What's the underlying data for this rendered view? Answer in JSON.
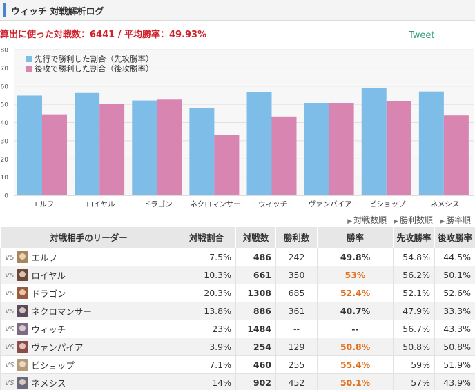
{
  "header": {
    "title": "ウィッチ 対戦解析ログ"
  },
  "summary": {
    "text": "算出に使った対戦数：6441 / 平均勝率：49.93%"
  },
  "tweet": {
    "label": "Tweet"
  },
  "colors": {
    "first": "#7fbde9",
    "second": "#d885b2",
    "accent": "#4a86c8",
    "orange": "#e36c17",
    "red": "#d0202a"
  },
  "chart_data": {
    "type": "bar",
    "categories": [
      "エルフ",
      "ロイヤル",
      "ドラゴン",
      "ネクロマンサー",
      "ウィッチ",
      "ヴァンパイア",
      "ビショップ",
      "ネメシス"
    ],
    "series": [
      {
        "name": "先行で勝利した割合（先攻勝率）",
        "values": [
          54.8,
          56.2,
          52.1,
          47.9,
          56.7,
          50.8,
          59.0,
          57.0
        ]
      },
      {
        "name": "後攻で勝利した割合（後攻勝率）",
        "values": [
          44.5,
          50.1,
          52.6,
          33.3,
          43.3,
          50.8,
          51.9,
          43.9
        ]
      }
    ],
    "ylim": [
      0,
      80
    ],
    "yticks": [
      0,
      10,
      20,
      30,
      40,
      50,
      60,
      70,
      80
    ],
    "grid": true,
    "legend": "top-left"
  },
  "sort_links": [
    "対戦数順",
    "勝利数順",
    "勝率順"
  ],
  "table": {
    "headers": [
      "対戦相手のリーダー",
      "対戦割合",
      "対戦数",
      "勝利数",
      "勝率",
      "先攻勝率",
      "後攻勝率"
    ],
    "vs_label": "vs",
    "rows": [
      {
        "leader": "エルフ",
        "ratio": "7.5%",
        "games": "486",
        "wins": "242",
        "winrate": "49.8%",
        "first": "54.8%",
        "second": "44.5%",
        "highlight": false,
        "color": "#a7865a"
      },
      {
        "leader": "ロイヤル",
        "ratio": "10.3%",
        "games": "661",
        "wins": "350",
        "winrate": "53%",
        "first": "56.2%",
        "second": "50.1%",
        "highlight": true,
        "color": "#6c4a3a"
      },
      {
        "leader": "ドラゴン",
        "ratio": "20.3%",
        "games": "1308",
        "wins": "685",
        "winrate": "52.4%",
        "first": "52.1%",
        "second": "52.6%",
        "highlight": true,
        "color": "#9a5a3c"
      },
      {
        "leader": "ネクロマンサー",
        "ratio": "13.8%",
        "games": "886",
        "wins": "361",
        "winrate": "40.7%",
        "first": "47.9%",
        "second": "33.3%",
        "highlight": false,
        "color": "#5a4a5e"
      },
      {
        "leader": "ウィッチ",
        "ratio": "23%",
        "games": "1484",
        "wins": "--",
        "winrate": "--",
        "first": "56.7%",
        "second": "43.3%",
        "highlight": false,
        "color": "#7a6a8c"
      },
      {
        "leader": "ヴァンパイア",
        "ratio": "3.9%",
        "games": "254",
        "wins": "129",
        "winrate": "50.8%",
        "first": "50.8%",
        "second": "50.8%",
        "highlight": true,
        "color": "#8c4a4a"
      },
      {
        "leader": "ビショップ",
        "ratio": "7.1%",
        "games": "460",
        "wins": "255",
        "winrate": "55.4%",
        "first": "59%",
        "second": "51.9%",
        "highlight": true,
        "color": "#b49a7a"
      },
      {
        "leader": "ネメシス",
        "ratio": "14%",
        "games": "902",
        "wins": "452",
        "winrate": "50.1%",
        "first": "57%",
        "second": "43.9%",
        "highlight": true,
        "color": "#6a6a7a"
      }
    ]
  }
}
